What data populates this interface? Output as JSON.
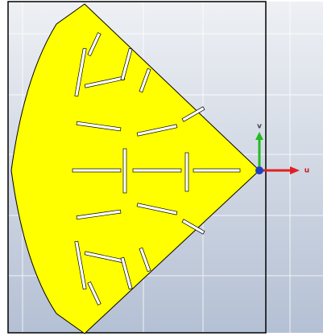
{
  "axes": {
    "v": "v",
    "u": "u"
  }
}
